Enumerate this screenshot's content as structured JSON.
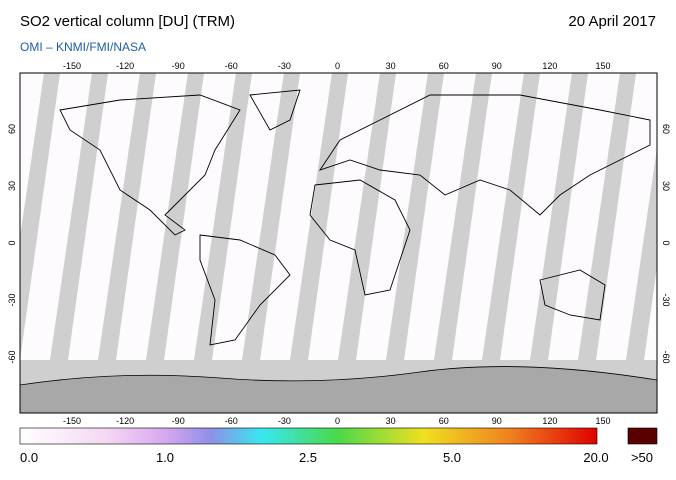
{
  "header": {
    "title": "SO2 vertical column [DU] (TRM)",
    "date": "20 April 2017",
    "source": "OMI  –  KNMI/FMI/NASA"
  },
  "map": {
    "lon_ticks": [
      -150,
      -120,
      -90,
      -60,
      -30,
      0,
      30,
      60,
      90,
      120,
      150
    ],
    "lat_ticks": [
      60,
      30,
      0,
      -30,
      -60
    ]
  },
  "colorbar": {
    "labels": [
      "0.0",
      "1.0",
      "2.5",
      "5.0",
      "20.0"
    ],
    "overflow_label": ">50"
  }
}
